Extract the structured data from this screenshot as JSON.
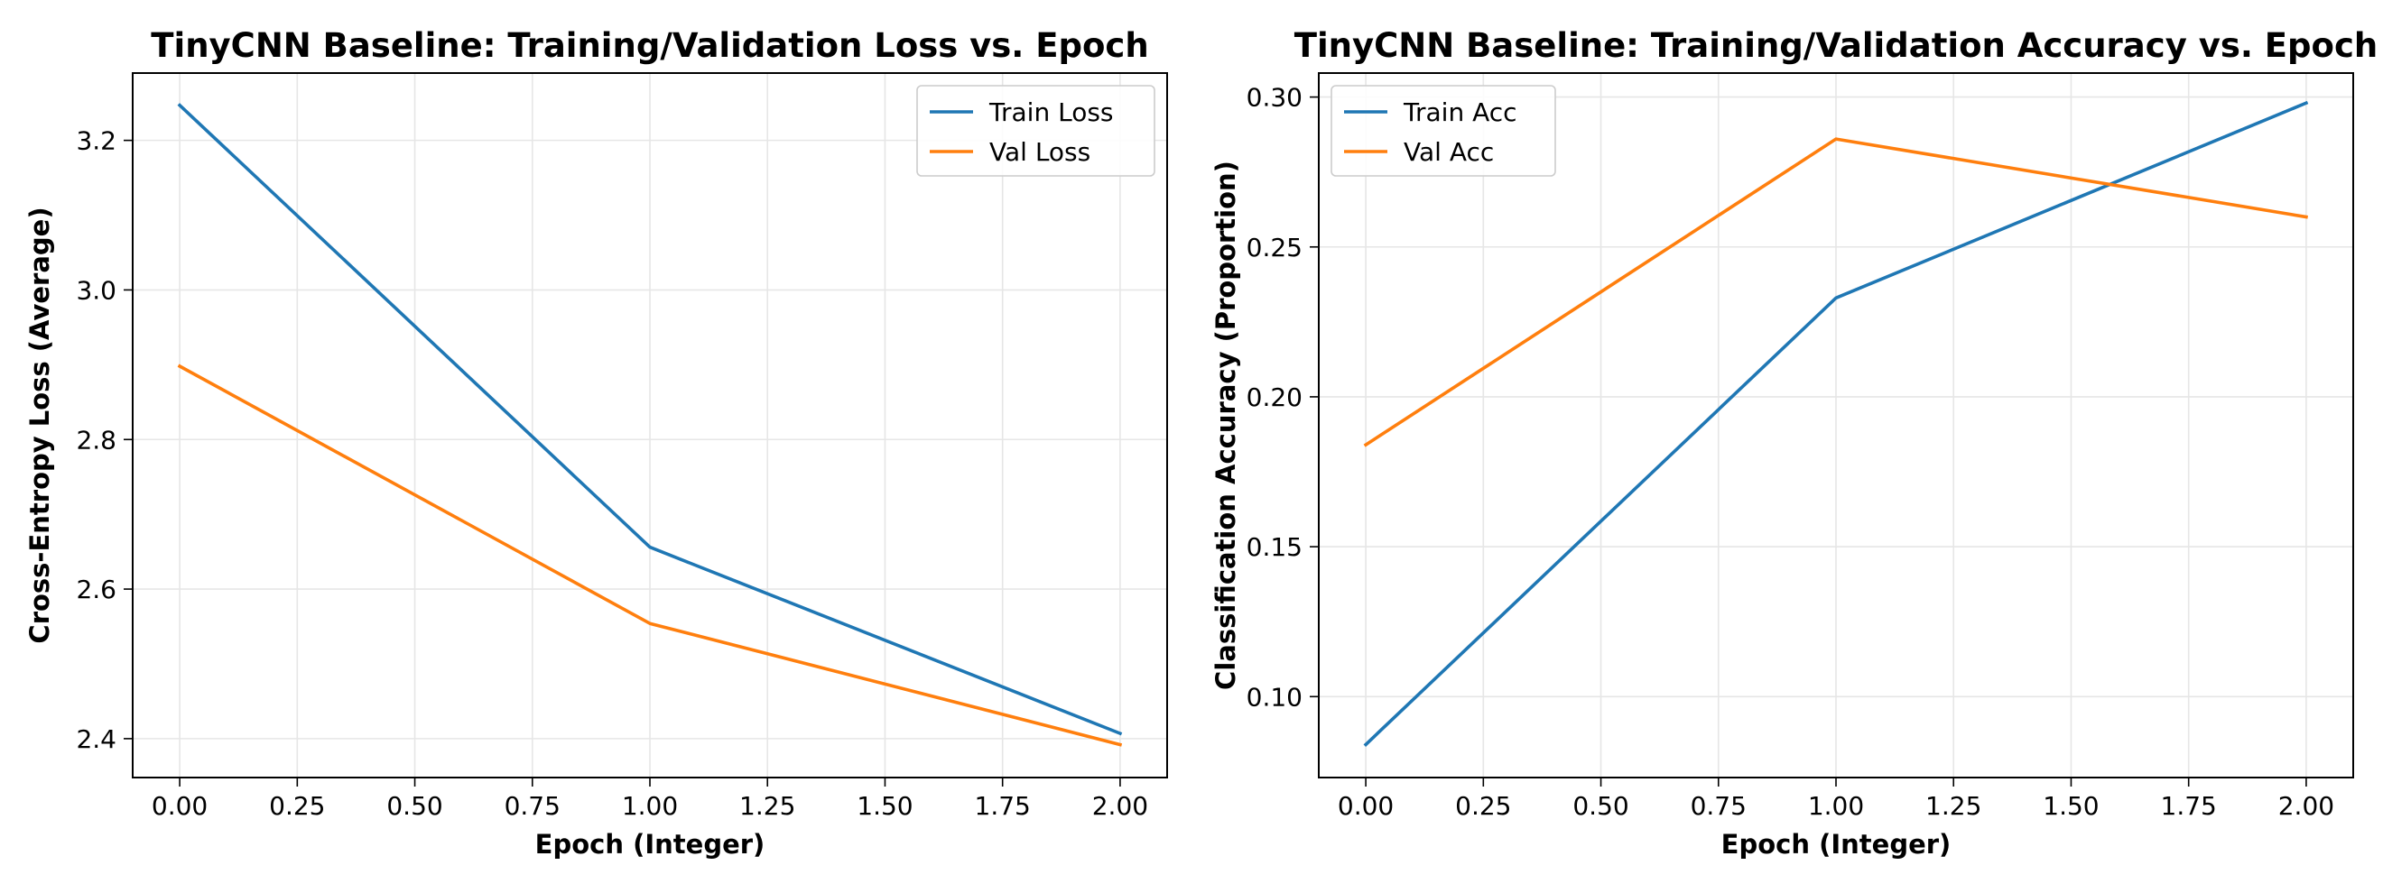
{
  "chart_data": [
    {
      "type": "line",
      "title": "TinyCNN Baseline: Training/Validation Loss vs. Epoch",
      "xlabel": "Epoch (Integer)",
      "ylabel": "Cross-Entropy Loss (Average)",
      "x": [
        0,
        1,
        2
      ],
      "xlim": [
        -0.1,
        2.1
      ],
      "ylim": [
        2.348,
        3.29
      ],
      "xticks": [
        0,
        0.25,
        0.5,
        0.75,
        1,
        1.25,
        1.5,
        1.75,
        2
      ],
      "xtick_labels": [
        "0.00",
        "0.25",
        "0.50",
        "0.75",
        "1.00",
        "1.25",
        "1.50",
        "1.75",
        "2.00"
      ],
      "yticks": [
        2.4,
        2.6,
        2.8,
        3.0,
        3.2
      ],
      "ytick_labels": [
        "2.4",
        "2.6",
        "2.8",
        "3.0",
        "3.2"
      ],
      "grid": true,
      "legend_position": "top-right",
      "series": [
        {
          "name": "Train Loss",
          "color": "#1f77b4",
          "values": [
            3.247,
            2.656,
            2.407
          ]
        },
        {
          "name": "Val Loss",
          "color": "#ff7f0e",
          "values": [
            2.898,
            2.554,
            2.392
          ]
        }
      ]
    },
    {
      "type": "line",
      "title": "TinyCNN Baseline: Training/Validation Accuracy vs. Epoch",
      "xlabel": "Epoch (Integer)",
      "ylabel": "Classification Accuracy (Proportion)",
      "x": [
        0,
        1,
        2
      ],
      "xlim": [
        -0.1,
        2.1
      ],
      "ylim": [
        0.073,
        0.308
      ],
      "xticks": [
        0,
        0.25,
        0.5,
        0.75,
        1,
        1.25,
        1.5,
        1.75,
        2
      ],
      "xtick_labels": [
        "0.00",
        "0.25",
        "0.50",
        "0.75",
        "1.00",
        "1.25",
        "1.50",
        "1.75",
        "2.00"
      ],
      "yticks": [
        0.1,
        0.15,
        0.2,
        0.25,
        0.3
      ],
      "ytick_labels": [
        "0.10",
        "0.15",
        "0.20",
        "0.25",
        "0.30"
      ],
      "grid": true,
      "legend_position": "top-left",
      "series": [
        {
          "name": "Train Acc",
          "color": "#1f77b4",
          "values": [
            0.084,
            0.233,
            0.298
          ]
        },
        {
          "name": "Val Acc",
          "color": "#ff7f0e",
          "values": [
            0.184,
            0.286,
            0.26
          ]
        }
      ]
    }
  ]
}
